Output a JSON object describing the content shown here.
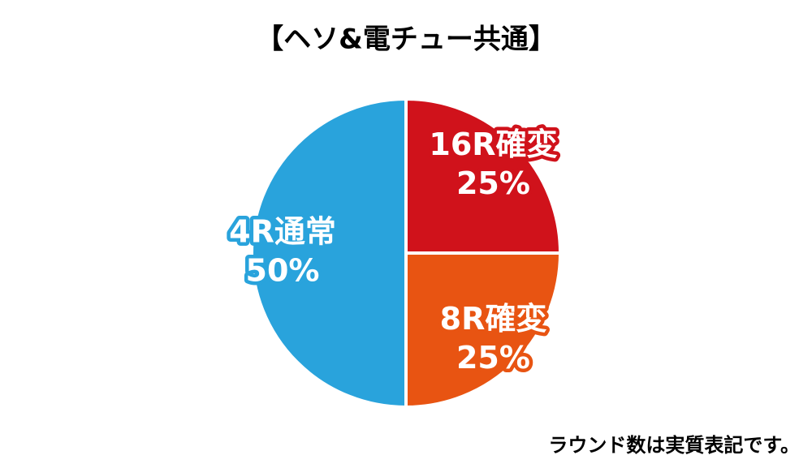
{
  "chart_data": {
    "type": "pie",
    "title": "【ヘソ&電チュー共通】",
    "categories": [
      "16R確変",
      "8R確変",
      "4R通常"
    ],
    "values": [
      25,
      25,
      50
    ],
    "value_labels": [
      "25%",
      "25%",
      "50%"
    ],
    "colors": [
      "#d0121b",
      "#e85412",
      "#29a3dc"
    ],
    "footnote": "ラウンド数は実質表記です。"
  }
}
